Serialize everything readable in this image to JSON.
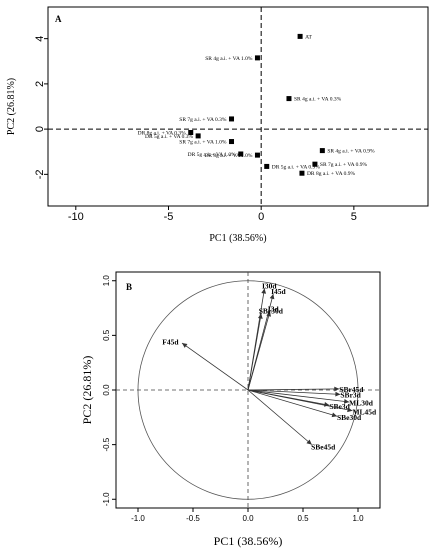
{
  "chart_data": [
    {
      "type": "scatter",
      "panel_label": "A",
      "title": "",
      "xlabel": "PC1 (38.56%)",
      "ylabel": "PC2 (26.81%)",
      "xlim": [
        -11.5,
        9
      ],
      "ylim": [
        -3.4,
        5.4
      ],
      "xticks": [
        -10,
        -5,
        0,
        5
      ],
      "yticks": [
        -2,
        0,
        2,
        4
      ],
      "reference_lines": {
        "x": 0,
        "y": 0
      },
      "grid": false,
      "points": [
        {
          "label": "AT",
          "x": 2.1,
          "y": 4.1,
          "label_side": "right"
        },
        {
          "label": "SR 4g a.i. + VA 1.0%",
          "x": -0.2,
          "y": 3.15,
          "label_side": "left"
        },
        {
          "label": "SR 4g a.i. + VA 0.3%",
          "x": 1.5,
          "y": 1.35,
          "label_side": "right"
        },
        {
          "label": "SR 7g a.i. + VA 0.3%",
          "x": -1.6,
          "y": 0.45,
          "label_side": "left"
        },
        {
          "label": "DR 8g a.i. + VA 0.3%",
          "x": -3.8,
          "y": -0.15,
          "label_side": "left"
        },
        {
          "label": "DR 5g a.i. + VA 0.3%",
          "x": -3.4,
          "y": -0.3,
          "label_side": "left"
        },
        {
          "label": "SR 7g a.i. + VA 1.0%",
          "x": -1.6,
          "y": -0.55,
          "label_side": "left"
        },
        {
          "label": "DR 5g a.i. + VA 1.0%",
          "x": -1.1,
          "y": -1.1,
          "label_side": "left"
        },
        {
          "label": "DR 8g a.i. + VA 1.0%",
          "x": -0.2,
          "y": -1.15,
          "label_side": "left"
        },
        {
          "label": "DR 5g a.i. + VA 0.9%",
          "x": 0.3,
          "y": -1.65,
          "label_side": "right"
        },
        {
          "label": "SR 4g a.i. + VA 0.9%",
          "x": 3.3,
          "y": -0.95,
          "label_side": "right"
        },
        {
          "label": "SR 7g a.i. + VA 0.9%",
          "x": 2.9,
          "y": -1.55,
          "label_side": "right"
        },
        {
          "label": "DR 8g a.i. + VA 0.9%",
          "x": 2.2,
          "y": -1.95,
          "label_side": "right"
        }
      ]
    },
    {
      "type": "biplot",
      "panel_label": "B",
      "title": "",
      "xlabel": "PC1 (38.56%)",
      "ylabel": "PC2 (26.81%)",
      "xlim": [
        -1.2,
        1.2
      ],
      "ylim": [
        -1.08,
        1.08
      ],
      "xticks": [
        -1.0,
        -0.5,
        0.0,
        0.5,
        1.0
      ],
      "yticks": [
        -1.0,
        -0.5,
        0.0,
        0.5,
        1.0
      ],
      "unit_circle": true,
      "reference_lines": {
        "x": 0,
        "y": 0
      },
      "grid": false,
      "vectors": [
        {
          "label": "I30d",
          "x": 0.15,
          "y": 0.93
        },
        {
          "label": "I45d",
          "x": 0.23,
          "y": 0.88
        },
        {
          "label": "I3d",
          "x": 0.2,
          "y": 0.72
        },
        {
          "label": "SBr30d",
          "x": 0.12,
          "y": 0.7
        },
        {
          "label": "F45d",
          "x": -0.6,
          "y": 0.43
        },
        {
          "label": "SBr45d",
          "x": 0.83,
          "y": 0.01
        },
        {
          "label": "SBr3d",
          "x": 0.84,
          "y": -0.04
        },
        {
          "label": "ML30d",
          "x": 0.92,
          "y": -0.11
        },
        {
          "label": "SBe3d",
          "x": 0.74,
          "y": -0.14
        },
        {
          "label": "ML45d",
          "x": 0.95,
          "y": -0.19
        },
        {
          "label": "SBe30d",
          "x": 0.81,
          "y": -0.24
        },
        {
          "label": "SBe45d",
          "x": 0.58,
          "y": -0.5
        }
      ]
    }
  ]
}
